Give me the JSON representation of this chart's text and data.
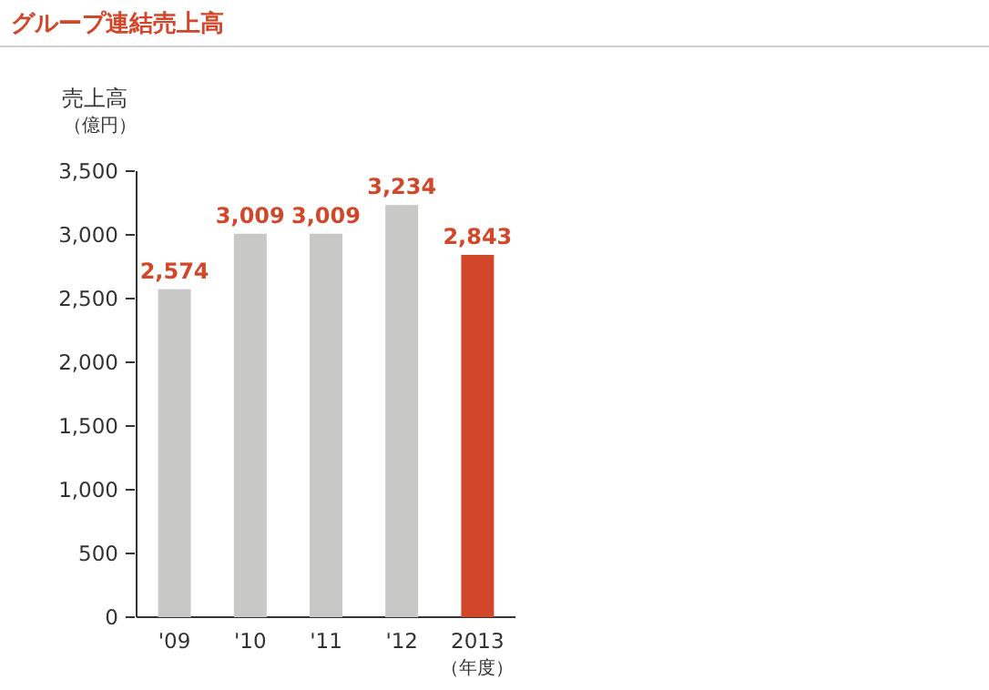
{
  "chart_data": {
    "type": "bar",
    "title": "グループ連結売上高",
    "ylabel": "売上高",
    "categories": [
      "'09",
      "'10",
      "'11",
      "'12",
      "2013"
    ],
    "values": [
      2574,
      3009,
      3009,
      3234,
      2843
    ],
    "colors": [
      "#c8c8c6",
      "#c8c8c6",
      "#c8c8c6",
      "#c8c8c6",
      "#d2472a"
    ],
    "value_labels": [
      "2,574",
      "3,009",
      "3,009",
      "3,234",
      "2,843"
    ],
    "ylim": [
      0,
      3500
    ],
    "yticks": [
      {
        "value": 0,
        "label": "0"
      },
      {
        "value": 500,
        "label": "500"
      },
      {
        "value": 1000,
        "label": "1,000"
      },
      {
        "value": 1500,
        "label": "1,500"
      },
      {
        "value": 2000,
        "label": "2,000"
      },
      {
        "value": 2500,
        "label": "2,500"
      },
      {
        "value": 3000,
        "label": "3,000"
      },
      {
        "value": 3500,
        "label": "3,500"
      }
    ],
    "annotations": [
      "（億円）",
      "（年度）"
    ]
  }
}
